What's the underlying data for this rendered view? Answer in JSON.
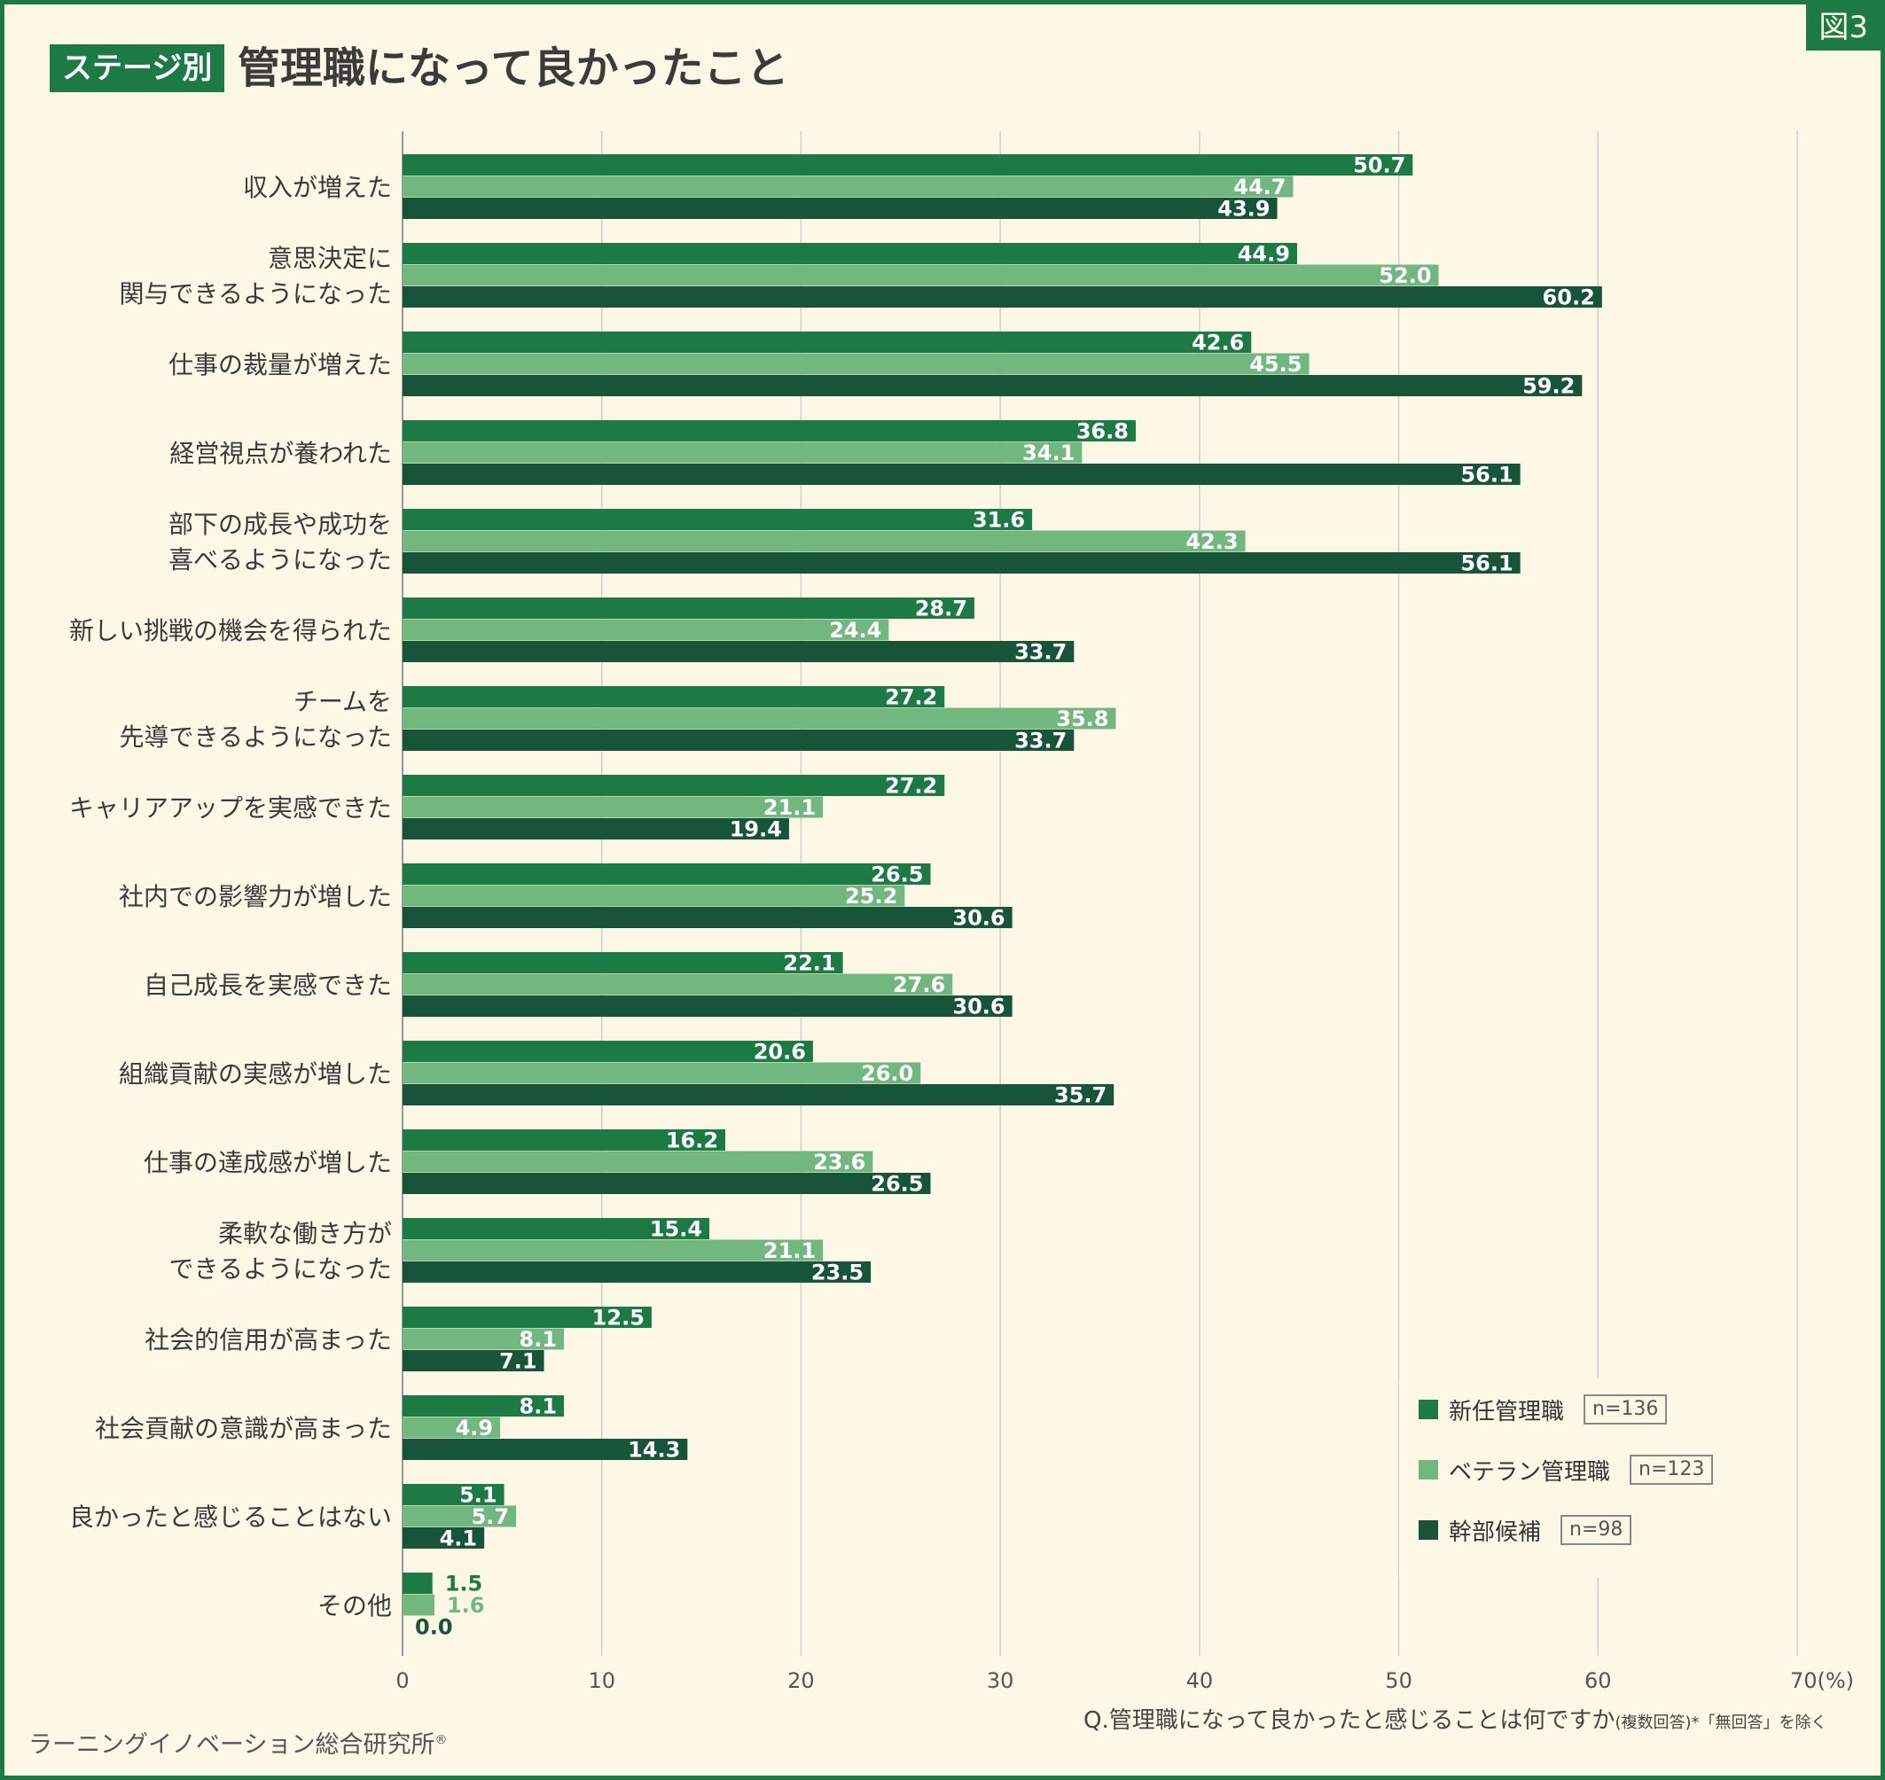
{
  "figure_tag": "図3",
  "header": {
    "stage_badge": "ステージ別",
    "title": "管理職になって良かったこと"
  },
  "legend": [
    {
      "label": "新任管理職",
      "n": "n=136",
      "color": "#1e7a45"
    },
    {
      "label": "ベテラン管理職",
      "n": "n=123",
      "color": "#72b77f"
    },
    {
      "label": "幹部候補",
      "n": "n=98",
      "color": "#17543a"
    }
  ],
  "footer": {
    "question": "Q.管理職になって良かったと感じることは何ですか",
    "question_note": "(複数回答)*「無回答」を除く",
    "brand": "ラーニングイノベーション総合研究所",
    "brand_mark": "®"
  },
  "chart_data": {
    "type": "bar",
    "orientation": "horizontal",
    "xlim": [
      0,
      70
    ],
    "x_ticks": [
      "0",
      "10",
      "20",
      "30",
      "40",
      "50",
      "60",
      "70(%)"
    ],
    "grid": true,
    "legend_position": "bottom-right",
    "categories": [
      [
        "収入が増えた"
      ],
      [
        "意思決定に",
        "関与できるようになった"
      ],
      [
        "仕事の裁量が増えた"
      ],
      [
        "経営視点が養われた"
      ],
      [
        "部下の成長や成功を",
        "喜べるようになった"
      ],
      [
        "新しい挑戦の機会を得られた"
      ],
      [
        "チームを",
        "先導できるようになった"
      ],
      [
        "キャリアアップを実感できた"
      ],
      [
        "社内での影響力が増した"
      ],
      [
        "自己成長を実感できた"
      ],
      [
        "組織貢献の実感が増した"
      ],
      [
        "仕事の達成感が増した"
      ],
      [
        "柔軟な働き方が",
        "できるようになった"
      ],
      [
        "社会的信用が高まった"
      ],
      [
        "社会貢献の意識が高まった"
      ],
      [
        "良かったと感じることはない"
      ],
      [
        "その他"
      ]
    ],
    "series": [
      {
        "name": "新任管理職",
        "color": "#1e7a45",
        "values": [
          "50.7",
          "44.9",
          "42.6",
          "36.8",
          "31.6",
          "28.7",
          "27.2",
          "27.2",
          "26.5",
          "22.1",
          "20.6",
          "16.2",
          "15.4",
          "12.5",
          "8.1",
          "5.1",
          "1.5"
        ]
      },
      {
        "name": "ベテラン管理職",
        "color": "#72b77f",
        "values": [
          "44.7",
          "52.0",
          "45.5",
          "34.1",
          "42.3",
          "24.4",
          "35.8",
          "21.1",
          "25.2",
          "27.6",
          "26.0",
          "23.6",
          "21.1",
          "8.1",
          "4.9",
          "5.7",
          "1.6"
        ]
      },
      {
        "name": "幹部候補",
        "color": "#17543a",
        "values": [
          "43.9",
          "60.2",
          "59.2",
          "56.1",
          "56.1",
          "33.7",
          "33.7",
          "19.4",
          "30.6",
          "30.6",
          "35.7",
          "26.5",
          "23.5",
          "7.1",
          "14.3",
          "4.1",
          "0.0"
        ]
      }
    ]
  }
}
